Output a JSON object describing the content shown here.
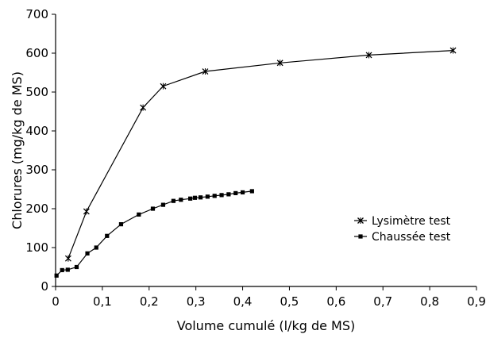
{
  "chart_data": {
    "type": "line",
    "xlabel": "Volume cumulé (l/kg de MS)",
    "ylabel": "Chlorures (mg/kg de MS)",
    "xlim": [
      0,
      0.9
    ],
    "ylim": [
      0,
      700
    ],
    "x_ticks": [
      "0",
      "0,1",
      "0,2",
      "0,3",
      "0,4",
      "0,5",
      "0,6",
      "0,7",
      "0,8",
      "0,9"
    ],
    "y_ticks": [
      "0",
      "100",
      "200",
      "300",
      "400",
      "500",
      "600",
      "700"
    ],
    "grid": false,
    "legend_position": "right",
    "series": [
      {
        "name": "Lysimètre test",
        "marker": "x",
        "color": "#000000",
        "x": [
          0.027,
          0.066,
          0.187,
          0.23,
          0.32,
          0.48,
          0.67,
          0.85
        ],
        "y": [
          72,
          193,
          460,
          515,
          553,
          575,
          595,
          607
        ]
      },
      {
        "name": "Chaussée test",
        "marker": "square",
        "color": "#000000",
        "x": [
          0.002,
          0.014,
          0.026,
          0.045,
          0.068,
          0.087,
          0.11,
          0.14,
          0.178,
          0.208,
          0.23,
          0.252,
          0.268,
          0.288,
          0.298,
          0.31,
          0.325,
          0.34,
          0.355,
          0.37,
          0.385,
          0.4,
          0.42
        ],
        "y": [
          28,
          42,
          43,
          50,
          85,
          100,
          130,
          160,
          185,
          200,
          210,
          220,
          223,
          226,
          228,
          229,
          231,
          233,
          235,
          237,
          240,
          242,
          245
        ]
      }
    ]
  }
}
